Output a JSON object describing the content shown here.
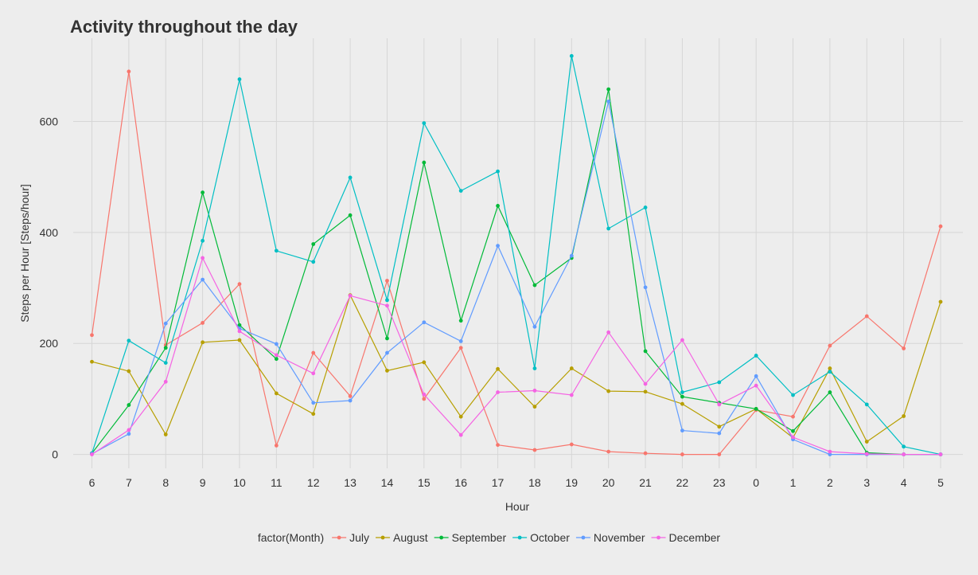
{
  "chart_data": {
    "type": "line",
    "title": "Activity throughout the day",
    "xlabel": "Hour",
    "ylabel": "Steps per Hour [Steps/hour]",
    "categories": [
      "6",
      "7",
      "8",
      "9",
      "10",
      "11",
      "12",
      "13",
      "14",
      "15",
      "16",
      "17",
      "18",
      "19",
      "20",
      "21",
      "22",
      "23",
      "0",
      "1",
      "2",
      "3",
      "4",
      "5"
    ],
    "yticks": [
      0,
      200,
      400,
      600
    ],
    "ylim": [
      -25,
      750
    ],
    "grid": true,
    "legend": {
      "title": "factor(Month)",
      "placement": "bottom"
    },
    "series": [
      {
        "name": "July",
        "color": "#F8766D",
        "values": [
          215,
          690,
          197,
          237,
          307,
          16,
          183,
          105,
          313,
          100,
          192,
          17,
          8,
          18,
          5,
          2,
          0,
          0,
          80,
          68,
          196,
          249,
          191,
          411
        ]
      },
      {
        "name": "August",
        "color": "#B79F00",
        "values": [
          167,
          150,
          36,
          202,
          206,
          110,
          73,
          287,
          151,
          166,
          68,
          154,
          86,
          155,
          114,
          113,
          91,
          50,
          82,
          30,
          155,
          23,
          69,
          275
        ]
      },
      {
        "name": "September",
        "color": "#00BA38",
        "values": [
          2,
          89,
          192,
          472,
          233,
          172,
          379,
          431,
          209,
          526,
          241,
          448,
          305,
          354,
          658,
          186,
          104,
          93,
          82,
          42,
          112,
          3,
          0,
          0
        ]
      },
      {
        "name": "October",
        "color": "#00BFC4",
        "values": [
          2,
          205,
          165,
          385,
          676,
          367,
          347,
          499,
          278,
          597,
          475,
          510,
          155,
          718,
          407,
          445,
          112,
          130,
          178,
          107,
          149,
          90,
          14,
          0
        ]
      },
      {
        "name": "November",
        "color": "#619CFF",
        "values": [
          1,
          37,
          236,
          315,
          227,
          199,
          93,
          97,
          183,
          238,
          204,
          376,
          230,
          358,
          636,
          301,
          43,
          38,
          141,
          27,
          0,
          0,
          0,
          0
        ]
      },
      {
        "name": "December",
        "color": "#F564E3",
        "values": [
          0,
          44,
          131,
          354,
          222,
          179,
          146,
          286,
          268,
          108,
          35,
          112,
          115,
          107,
          220,
          127,
          206,
          90,
          124,
          31,
          5,
          1,
          0,
          0
        ]
      }
    ]
  }
}
